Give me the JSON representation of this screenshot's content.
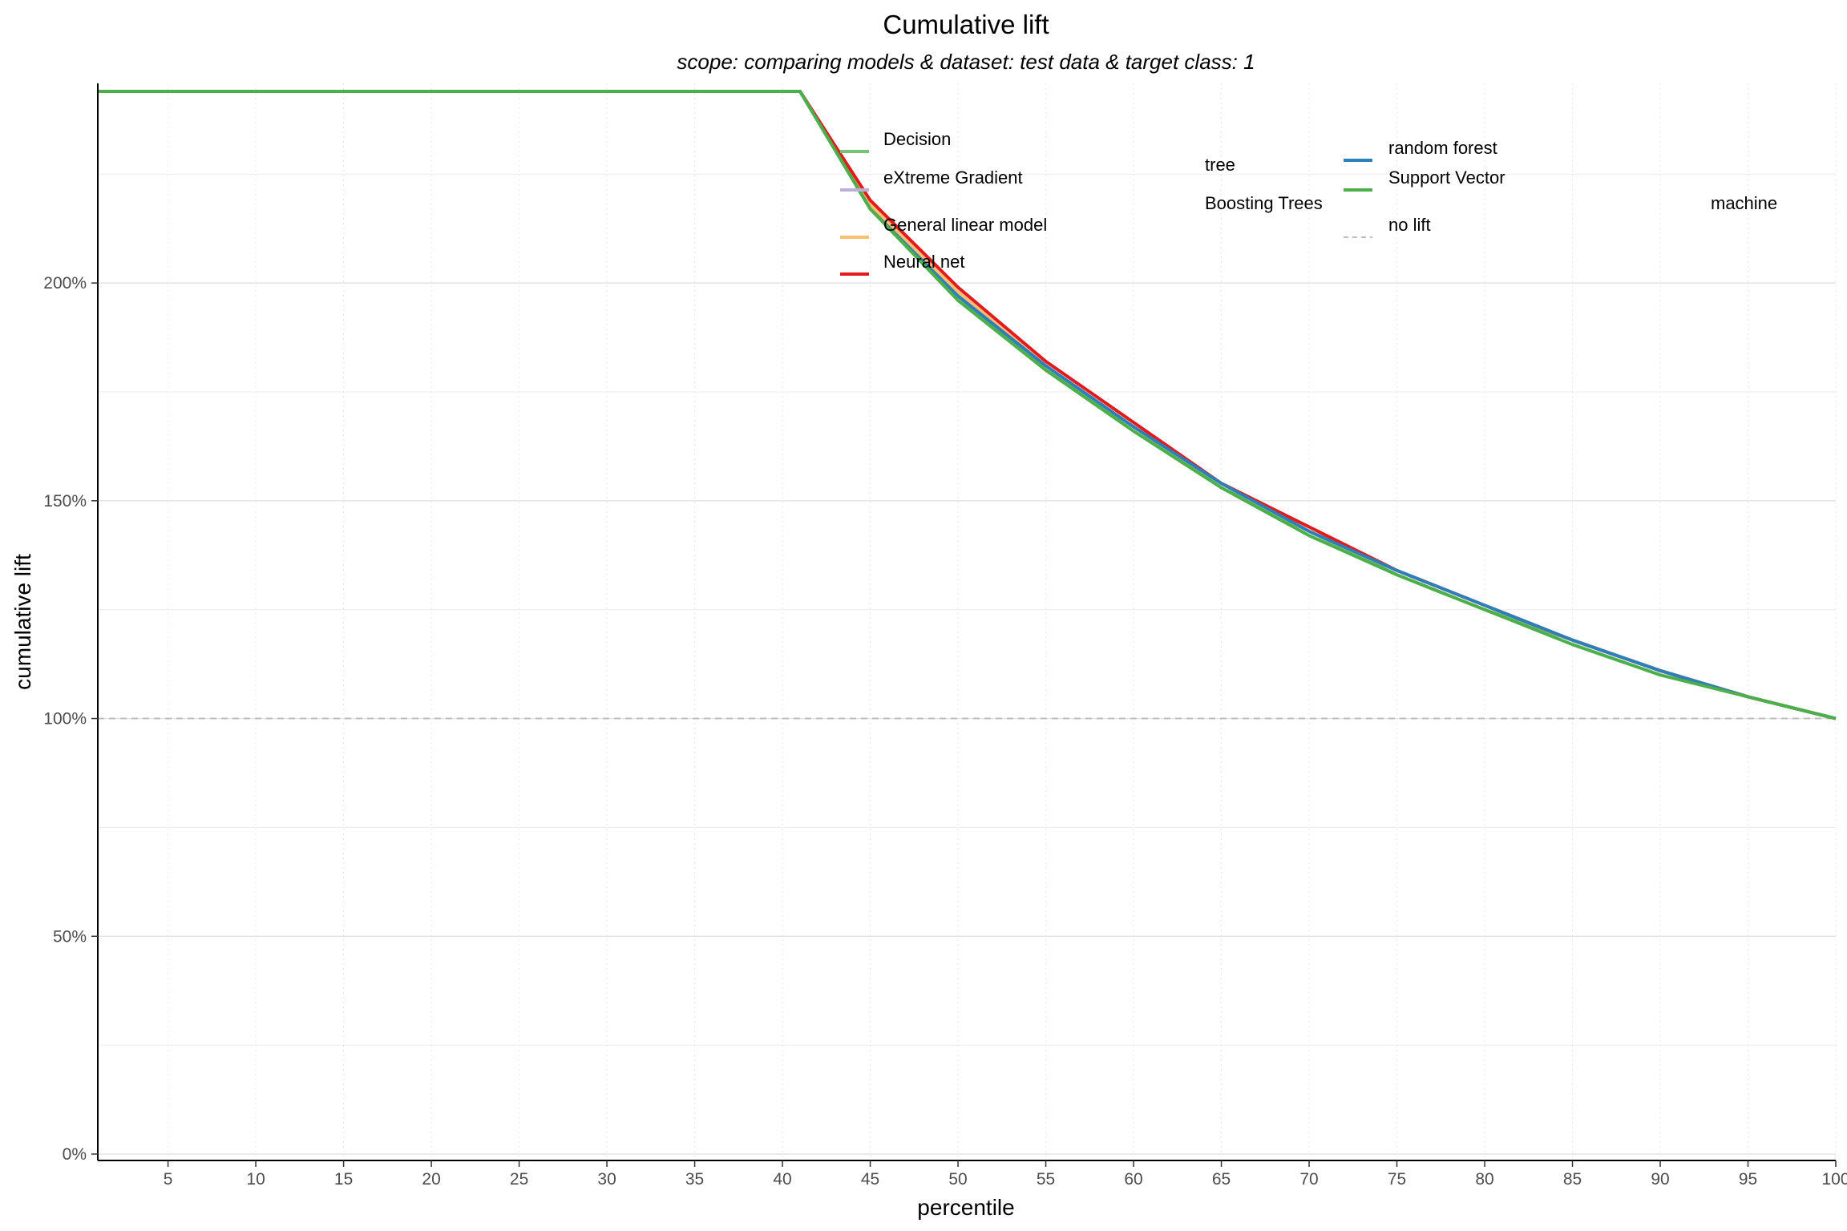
{
  "chart_data": {
    "type": "line",
    "title": "Cumulative lift",
    "subtitle": "scope: comparing models & dataset: test data & target class: 1",
    "xlabel": "percentile",
    "ylabel": "cumulative lift",
    "xlim": [
      1,
      100
    ],
    "ylim": [
      0,
      2.44
    ],
    "x_ticks": [
      5,
      10,
      15,
      20,
      25,
      30,
      35,
      40,
      45,
      50,
      55,
      60,
      65,
      70,
      75,
      80,
      85,
      90,
      95,
      100
    ],
    "x_tick_labels": [
      "5",
      "10",
      "15",
      "20",
      "25",
      "30",
      "35",
      "40",
      "45",
      "50",
      "55",
      "60",
      "65",
      "70",
      "75",
      "80",
      "85",
      "90",
      "95",
      "100"
    ],
    "y_ticks": [
      0,
      0.5,
      1,
      1.5,
      2
    ],
    "y_tick_labels": [
      "0%",
      "50%",
      "100%",
      "150%",
      "200%"
    ],
    "grid": true,
    "legend_position": "top-right (inside plot)",
    "x": [
      1,
      5,
      10,
      15,
      20,
      25,
      30,
      35,
      40,
      41,
      45,
      50,
      55,
      60,
      65,
      70,
      75,
      80,
      85,
      90,
      95,
      100
    ],
    "series": [
      {
        "name": "Decision tree",
        "color": "#74c476",
        "values": [
          2.44,
          2.44,
          2.44,
          2.44,
          2.44,
          2.44,
          2.44,
          2.44,
          2.44,
          2.44,
          2.17,
          1.97,
          1.8,
          1.67,
          1.53,
          1.43,
          1.33,
          1.25,
          1.18,
          1.11,
          1.05,
          1.0
        ]
      },
      {
        "name": "eXtreme Gradient Boosting Trees",
        "color": "#bcaed6",
        "values": [
          2.44,
          2.44,
          2.44,
          2.44,
          2.44,
          2.44,
          2.44,
          2.44,
          2.44,
          2.44,
          2.18,
          1.98,
          1.81,
          1.67,
          1.54,
          1.43,
          1.34,
          1.26,
          1.18,
          1.11,
          1.05,
          1.0
        ]
      },
      {
        "name": "General linear model",
        "color": "#fdbf6f",
        "values": [
          2.44,
          2.44,
          2.44,
          2.44,
          2.44,
          2.44,
          2.44,
          2.44,
          2.44,
          2.44,
          2.18,
          1.98,
          1.81,
          1.67,
          1.54,
          1.43,
          1.34,
          1.26,
          1.18,
          1.11,
          1.05,
          1.0
        ]
      },
      {
        "name": "Neural net",
        "color": "#e31a1c",
        "values": [
          2.44,
          2.44,
          2.44,
          2.44,
          2.44,
          2.44,
          2.44,
          2.44,
          2.44,
          2.44,
          2.19,
          1.99,
          1.82,
          1.68,
          1.54,
          1.44,
          1.34,
          1.26,
          1.18,
          1.11,
          1.05,
          1.0
        ]
      },
      {
        "name": "random forest",
        "color": "#2c7fb8",
        "values": [
          2.44,
          2.44,
          2.44,
          2.44,
          2.44,
          2.44,
          2.44,
          2.44,
          2.44,
          2.44,
          2.17,
          1.97,
          1.81,
          1.67,
          1.54,
          1.43,
          1.34,
          1.26,
          1.18,
          1.11,
          1.05,
          1.0
        ]
      },
      {
        "name": "Support Vector machine",
        "color": "#4daf4a",
        "values": [
          2.44,
          2.44,
          2.44,
          2.44,
          2.44,
          2.44,
          2.44,
          2.44,
          2.44,
          2.44,
          2.17,
          1.96,
          1.8,
          1.66,
          1.53,
          1.42,
          1.33,
          1.25,
          1.17,
          1.1,
          1.05,
          1.0
        ]
      }
    ],
    "reference_line": {
      "name": "no lift",
      "y": 1.0,
      "color": "#bdbdbd",
      "style": "dashed"
    },
    "legend_entries": [
      {
        "key": "Decision",
        "label": "Decision",
        "wrap": "tree",
        "color": "#74c476",
        "style": "solid"
      },
      {
        "key": "eXtreme",
        "label": "eXtreme Gradient",
        "wrap": "Boosting Trees",
        "color": "#bcaed6",
        "style": "solid"
      },
      {
        "key": "glm",
        "label": "General linear model",
        "wrap": "",
        "color": "#fdbf6f",
        "style": "solid"
      },
      {
        "key": "nn",
        "label": "Neural net",
        "wrap": "",
        "color": "#e31a1c",
        "style": "solid"
      },
      {
        "key": "rf",
        "label": "random forest",
        "wrap": "",
        "color": "#2c7fb8",
        "style": "solid"
      },
      {
        "key": "svm",
        "label": "Support Vector",
        "wrap": "machine",
        "color": "#4daf4a",
        "style": "solid"
      },
      {
        "key": "nolift",
        "label": "no lift",
        "wrap": "",
        "color": "#bdbdbd",
        "style": "dashed"
      }
    ]
  }
}
